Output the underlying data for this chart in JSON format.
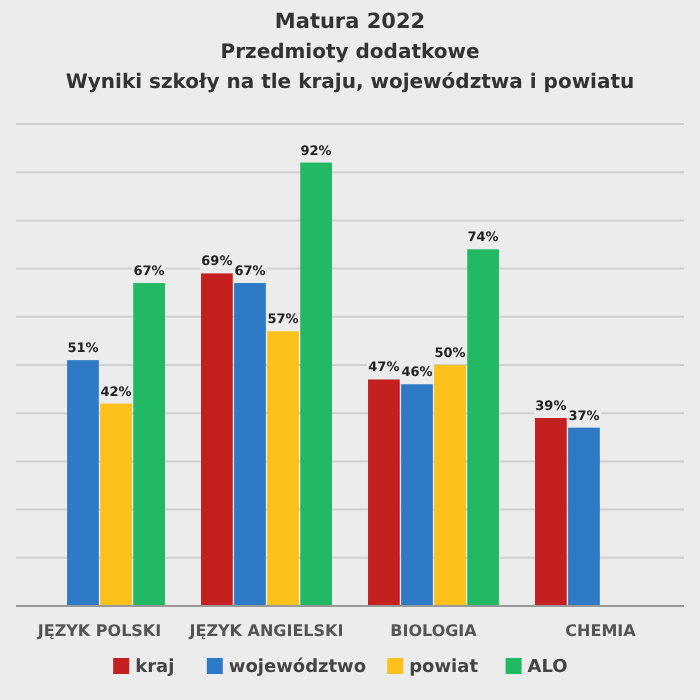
{
  "chart_data": {
    "type": "bar",
    "title": "Matura 2022",
    "subtitle": "Przedmioty dodatkowe\nWyniki szkoły na tle kraju, województwa i powiatu",
    "categories": [
      "JĘZYK POLSKI",
      "JĘZYK ANGIELSKI",
      "BIOLOGIA",
      "CHEMIA"
    ],
    "series": [
      {
        "name": "kraj",
        "color": "#c42020",
        "values": [
          null,
          69,
          47,
          39
        ],
        "value_labels": [
          null,
          "69%",
          "47%",
          "39%"
        ]
      },
      {
        "name": "województwo",
        "color": "#2e7ac6",
        "values": [
          51,
          67,
          46,
          37
        ],
        "value_labels": [
          "51%",
          "67%",
          "46%",
          "37%"
        ]
      },
      {
        "name": "powiat",
        "color": "#fcc21b",
        "values": [
          42,
          57,
          50,
          null
        ],
        "value_labels": [
          "42%",
          "57%",
          "50%",
          null
        ]
      },
      {
        "name": "ALO",
        "color": "#22b965",
        "values": [
          67,
          92,
          74,
          null
        ],
        "value_labels": [
          "67%",
          "92%",
          "74%",
          null
        ]
      }
    ],
    "ylim": [
      0,
      100
    ],
    "yticks": [
      {
        "value": 0,
        "label": null
      },
      {
        "value": 10,
        "label": null
      },
      {
        "value": 20,
        "label": null
      },
      {
        "value": 30,
        "label": null
      },
      {
        "value": 40,
        "label": null
      },
      {
        "value": 50,
        "label": null
      },
      {
        "value": 60,
        "label": null
      },
      {
        "value": 70,
        "label": null
      },
      {
        "value": 80,
        "label": null
      },
      {
        "value": 90,
        "label": null
      },
      {
        "value": 100,
        "label": null
      }
    ],
    "tick_labels": "x",
    "grid": "y",
    "legend": "bottom"
  }
}
